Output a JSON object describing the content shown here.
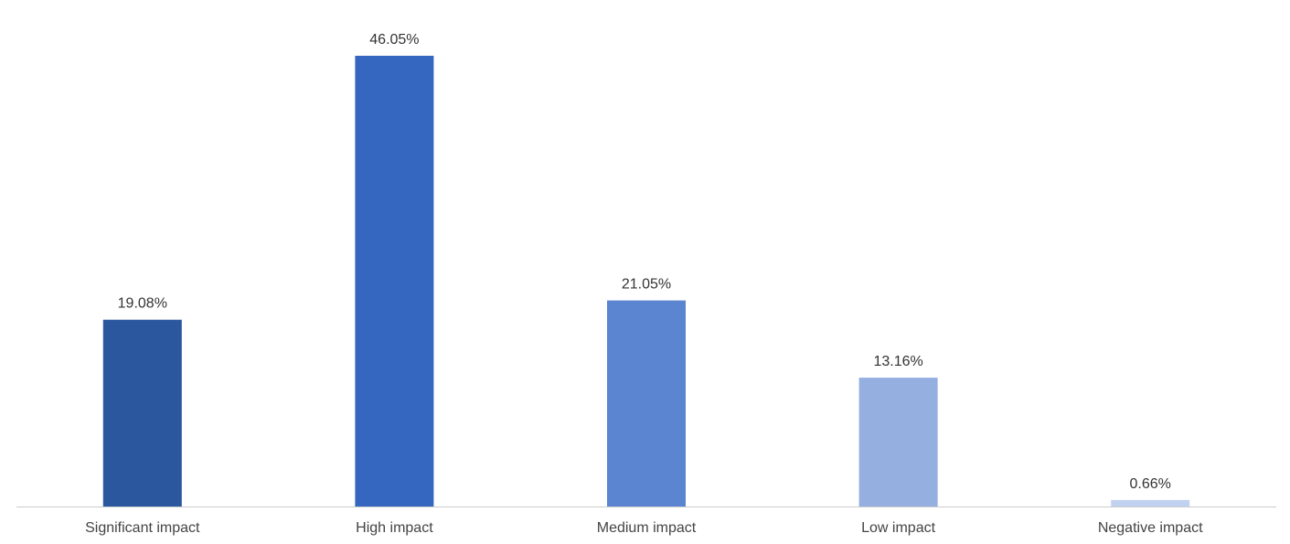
{
  "chart_data": {
    "type": "bar",
    "categories": [
      "Significant impact",
      "High impact",
      "Medium impact",
      "Low impact",
      "Negative impact"
    ],
    "values": [
      19.08,
      46.05,
      21.05,
      13.16,
      0.66
    ],
    "value_labels": [
      "19.08%",
      "46.05%",
      "21.05%",
      "13.16%",
      "0.66%"
    ],
    "colors": [
      "#2b579f",
      "#3566c0",
      "#5c85d1",
      "#94afe0",
      "#c0d2f0"
    ],
    "axis_color": "#cccccc",
    "grid": false,
    "legend": "none",
    "ylim": [
      0,
      46.05
    ]
  }
}
